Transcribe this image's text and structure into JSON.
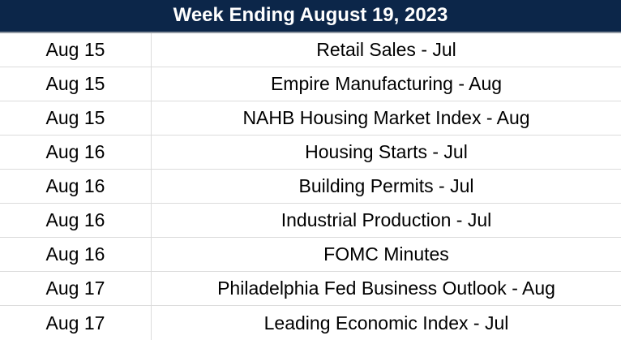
{
  "header": {
    "title": "Week Ending August 19, 2023"
  },
  "table": {
    "columns": [
      "date",
      "event"
    ],
    "rows": [
      {
        "date": "Aug 15",
        "event": "Retail Sales - Jul"
      },
      {
        "date": "Aug 15",
        "event": "Empire Manufacturing - Aug"
      },
      {
        "date": "Aug 15",
        "event": "NAHB Housing Market Index - Aug"
      },
      {
        "date": "Aug 16",
        "event": "Housing Starts - Jul"
      },
      {
        "date": "Aug 16",
        "event": "Building Permits - Jul"
      },
      {
        "date": "Aug 16",
        "event": "Industrial Production - Jul"
      },
      {
        "date": "Aug 16",
        "event": "FOMC Minutes"
      },
      {
        "date": "Aug 17",
        "event": "Philadelphia Fed Business Outlook - Aug"
      },
      {
        "date": "Aug 17",
        "event": "Leading Economic Index - Jul"
      }
    ]
  },
  "colors": {
    "header_bg": "#0c2649",
    "header_text": "#ffffff",
    "header_bottom_border": "#9199a3",
    "grid_line": "#dcdcdc",
    "body_text": "#000000",
    "row_bg": "#ffffff"
  }
}
